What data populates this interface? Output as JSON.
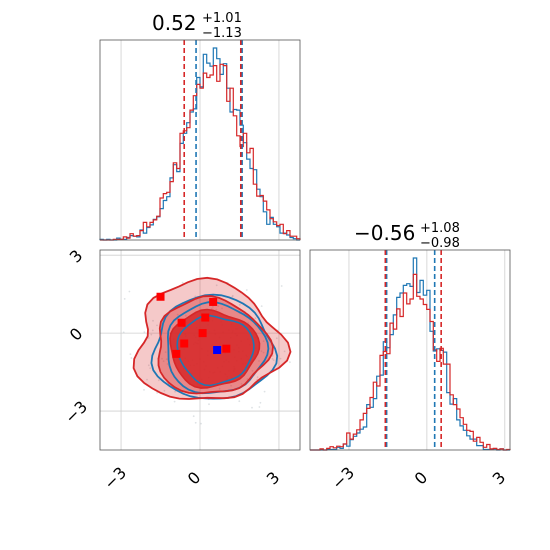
{
  "chart_data": [
    {
      "type": "histogram",
      "panel": "marginal-x",
      "title_value": "0.52",
      "title_plus": "+1.01",
      "title_minus": "−1.13",
      "xlim": [
        -3.8,
        3.8
      ],
      "x_ticks": [
        -3,
        0,
        3
      ],
      "grid": true,
      "series": [
        {
          "color": "#1f77b4",
          "mean": 0.5,
          "sd": 1.05,
          "quantile_lines": [
            -0.15,
            1.6
          ]
        },
        {
          "color": "#d62728",
          "mean": 0.5,
          "sd": 1.1,
          "quantile_lines": [
            -0.6,
            1.55
          ]
        }
      ]
    },
    {
      "type": "contour",
      "panel": "joint",
      "xlim": [
        -3.8,
        3.8
      ],
      "ylim": [
        -4.5,
        3.2
      ],
      "x_ticks": [
        -3,
        0,
        3
      ],
      "y_ticks": [
        -3,
        0,
        3
      ],
      "x_tick_labels": [
        "−3",
        "0",
        "3"
      ],
      "y_tick_labels": [
        "−3",
        "0",
        "3"
      ],
      "grid": true,
      "fill_color": "#d62728",
      "line_colors": [
        "#1f77b4",
        "#d62728"
      ],
      "center": [
        0.5,
        -0.6
      ],
      "markers": {
        "red": [
          [
            -1.5,
            1.4
          ],
          [
            -0.7,
            0.4
          ],
          [
            -0.6,
            -0.4
          ],
          [
            0.1,
            0.0
          ],
          [
            0.5,
            1.2
          ],
          [
            1.0,
            -0.6
          ],
          [
            -0.9,
            -0.8
          ],
          [
            0.2,
            0.6
          ]
        ],
        "blue": [
          [
            0.65,
            -0.65
          ]
        ]
      }
    },
    {
      "type": "histogram",
      "panel": "marginal-y",
      "title_value": "−0.56",
      "title_plus": "+1.08",
      "title_minus": "−0.98",
      "xlim": [
        -4.5,
        3.2
      ],
      "x_ticks": [
        -3,
        0,
        3
      ],
      "x_tick_labels": [
        "−3",
        "0",
        "3"
      ],
      "grid": true,
      "series": [
        {
          "color": "#1f77b4",
          "mean": -0.55,
          "sd": 0.95,
          "quantile_lines": [
            -1.55,
            0.3
          ]
        },
        {
          "color": "#d62728",
          "mean": -0.55,
          "sd": 1.05,
          "quantile_lines": [
            -1.6,
            0.55
          ]
        }
      ]
    }
  ],
  "ticks_bottom": {
    "left_panel": [
      "−3",
      "0",
      "3"
    ],
    "right_panel": [
      "−3",
      "0",
      "3"
    ]
  },
  "title_left": {
    "value": "0.52",
    "plus": "+1.01",
    "minus": "−1.13"
  },
  "title_right": {
    "value": "−0.56",
    "plus": "+1.08",
    "minus": "−0.98"
  }
}
